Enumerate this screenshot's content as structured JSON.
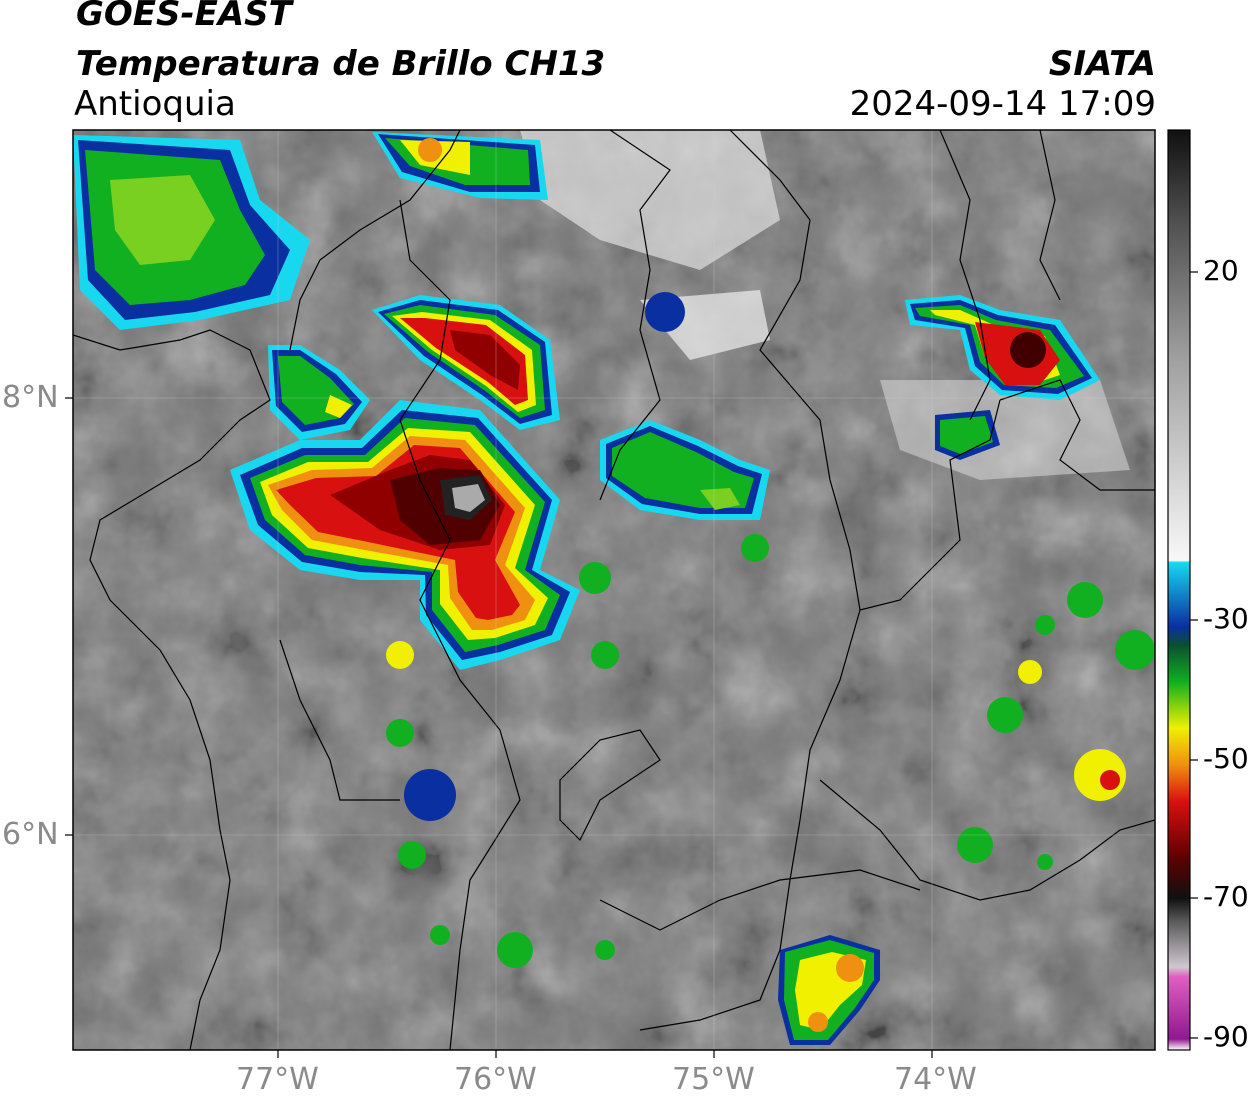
{
  "header": {
    "satellite": "GOES-EAST",
    "product": "Temperatura de Brillo CH13",
    "region": "Antioquia",
    "organization": "SIATA",
    "timestamp": "2024-09-14 17:09"
  },
  "map": {
    "lon_ticks": [
      "77°W",
      "76°W",
      "75°W",
      "74°W"
    ],
    "lat_ticks": [
      "8°N",
      "6°N"
    ]
  },
  "colorbar": {
    "tick_labels": [
      "20",
      "-30",
      "-50",
      "-70",
      "-90"
    ],
    "colors": {
      "warm_gray": "#7a7a7a",
      "cold_white": "#f2f2f2",
      "cyan": "#18d8f0",
      "blue": "#0a2fa0",
      "green": "#10b020",
      "yellow": "#f0f000",
      "orange": "#f09010",
      "red": "#d81010",
      "dark_red": "#600000",
      "black": "#101010",
      "pink": "#e060c0",
      "purple": "#901890"
    }
  }
}
